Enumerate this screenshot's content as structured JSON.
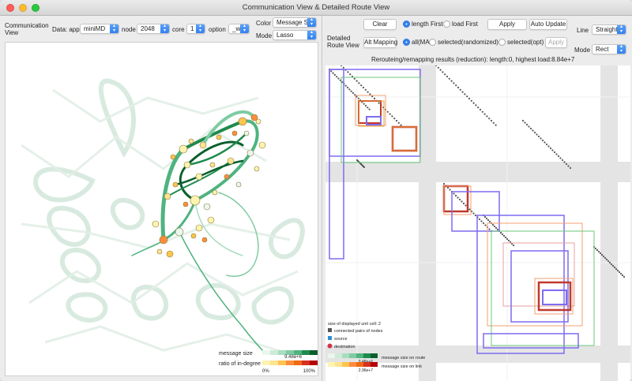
{
  "window": {
    "title": "Communication View & Detailed Route View"
  },
  "left": {
    "view_label_1": "Communication",
    "view_label_2": "View",
    "app_label": "Data: app",
    "app_value": "miniMD",
    "node_label": "node",
    "node_value": "2048",
    "core_label": "core",
    "core_value": "1",
    "option_label": "option",
    "option_value": "_w",
    "color_label": "Color",
    "color_value": "Message Siz",
    "mode_label": "Mode",
    "mode_value": "Lasso",
    "legend": {
      "msg_label": "message size",
      "msg_max": "9.48e+6",
      "ratio_label": "ratio of in-degree",
      "ratio_min": "0%",
      "ratio_max": "100%",
      "msg_colors": [
        "#eaf6ee",
        "#cdebd9",
        "#a8ddc0",
        "#7fcba2",
        "#4fb37f",
        "#1f8a4c",
        "#0a5f2c"
      ],
      "ratio_colors": [
        "#fff3b0",
        "#fee391",
        "#fec44f",
        "#fd8d3c",
        "#f16913",
        "#d7301f",
        "#b30000"
      ]
    }
  },
  "right": {
    "clear_label": "Clear",
    "length_first": "length First",
    "load_first": "load First",
    "apply_label": "Apply",
    "auto_update": "Auto Update",
    "line_label": "Line",
    "line_value": "Straight",
    "detail_label_1": "Detailed",
    "detail_label_2": "Route View",
    "alt_mapping": "Alt Mapping",
    "all_label": "all(MA",
    "sel_random": "selected(randomized)",
    "sel_opt": "selected(opt)",
    "apply2_label": "Apply",
    "mode_label": "Mode",
    "mode_value": "Rect",
    "results": "Rerouteing/remapping results (reduction): length:0, highest load:8.84e+7",
    "legend": {
      "cell_size": "size of displayed unit cell: 2",
      "pairs": "connected pairs of nodes",
      "source": "source",
      "destination": "destination",
      "route_label": "message size on route",
      "route_max": "9.48e+6",
      "link_label": "message size on link",
      "link_max": "2.96e+7",
      "pairs_color": "#555555",
      "source_color": "#2a8fd0",
      "dest_color": "#d2334a"
    }
  }
}
